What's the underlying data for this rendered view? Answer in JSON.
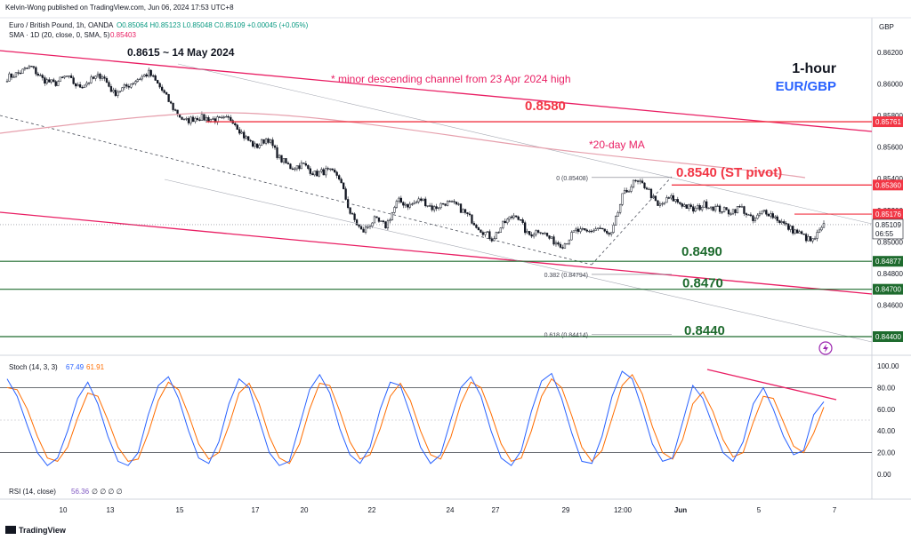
{
  "header": {
    "publisher": "Kelvin-Wong published on TradingView.com, Jun 06, 2024 17:53 UTC+8",
    "symbol": "Euro / British Pound, 1h, OANDA",
    "ohlc": "O0.85064 H0.85123 L0.85048 C0.85109 +0.00045 (+0.05%)",
    "sma": "SMA · 1D (20, close, 0, SMA, 5)",
    "sma_value": "0.85403"
  },
  "brand": {
    "label": "TradingView"
  },
  "colors": {
    "candle": "#131722",
    "resistance": "#f23645",
    "support": "#1e6b2e",
    "channel": "#e91e63",
    "ma": "#e6a0ad",
    "stoch_k": "#2962ff",
    "stoch_d": "#ff6d00",
    "title_blue": "#2962ff"
  },
  "chart_data": [
    {
      "type": "candlestick",
      "title": "1-hour",
      "subtitle": "EUR/GBP",
      "currency": "GBP",
      "ylim": [
        0.843,
        0.8625
      ],
      "y_ticks": [
        "0.86200",
        "0.86000",
        "0.85800",
        "0.85600",
        "0.85400",
        "0.85200",
        "0.85000",
        "0.84800",
        "0.84600",
        "0.84400"
      ],
      "x_ticks": [
        "10",
        "13",
        "15",
        "17",
        "20",
        "22",
        "24",
        "27",
        "29",
        "12:00",
        "Jun",
        "5",
        "7"
      ],
      "close_path": [
        0.8604,
        0.8607,
        0.8611,
        0.8603,
        0.86,
        0.8605,
        0.8598,
        0.8602,
        0.8606,
        0.8594,
        0.8598,
        0.8603,
        0.8607,
        0.8597,
        0.8585,
        0.8576,
        0.8579,
        0.8578,
        0.8577,
        0.8578,
        0.8567,
        0.856,
        0.8566,
        0.8553,
        0.8547,
        0.8549,
        0.8543,
        0.8545,
        0.8542,
        0.8518,
        0.8506,
        0.8514,
        0.851,
        0.8526,
        0.8523,
        0.8527,
        0.8521,
        0.8525,
        0.8523,
        0.8516,
        0.8508,
        0.8502,
        0.8512,
        0.8518,
        0.8504,
        0.8508,
        0.8501,
        0.8498,
        0.8507,
        0.8506,
        0.8509,
        0.8503,
        0.8529,
        0.8538,
        0.8535,
        0.8522,
        0.8528,
        0.8524,
        0.852,
        0.8524,
        0.8521,
        0.8519,
        0.8522,
        0.8513,
        0.852,
        0.8515,
        0.8509,
        0.8505,
        0.85,
        0.851
      ],
      "price_tags": [
        {
          "value": 0.85761,
          "label": "0.85761",
          "kind": "resistance"
        },
        {
          "value": 0.8536,
          "label": "0.85360",
          "kind": "resistance"
        },
        {
          "value": 0.85176,
          "label": "0.85176",
          "kind": "resistance"
        },
        {
          "value": 0.85109,
          "label": "0.85109",
          "kind": "current",
          "time_left": "06:55"
        },
        {
          "value": 0.84877,
          "label": "0.84877",
          "kind": "support"
        },
        {
          "value": 0.847,
          "label": "0.84700",
          "kind": "support"
        },
        {
          "value": 0.844,
          "label": "0.84400",
          "kind": "support"
        }
      ],
      "levels": [
        {
          "value": 0.858,
          "label": "0.8580",
          "kind": "resistance"
        },
        {
          "value": 0.854,
          "label": "0.8540 (ST pivot)",
          "kind": "resistance"
        },
        {
          "value": 0.849,
          "label": "0.8490",
          "kind": "support"
        },
        {
          "value": 0.847,
          "label": "0.8470",
          "kind": "support"
        },
        {
          "value": 0.844,
          "label": "0.8440",
          "kind": "support"
        }
      ],
      "fib": [
        {
          "label": "0 (0.85408)",
          "value": 0.85408
        },
        {
          "label": "0.382 (0.84794)",
          "value": 0.84794
        },
        {
          "label": "0.618 (0.84414)",
          "value": 0.84414
        }
      ],
      "annotations": [
        {
          "text": "0.8615 ~ 14 May 2024"
        },
        {
          "text": "* minor descending channel from 23 Apr 2024 high"
        },
        {
          "text": "*20-day MA"
        }
      ]
    },
    {
      "type": "line",
      "title": "Stoch (14, 3, 3)",
      "k_value": "67.49",
      "d_value": "61.91",
      "ylim": [
        -10,
        105
      ],
      "y_ticks": [
        "100.00",
        "80.00",
        "60.00",
        "40.00",
        "20.00",
        "0.00"
      ],
      "band_lines": [
        80,
        20
      ],
      "mid_line": 50,
      "k_path": [
        88,
        72,
        45,
        20,
        8,
        15,
        40,
        70,
        85,
        65,
        35,
        12,
        8,
        20,
        55,
        82,
        90,
        70,
        40,
        15,
        10,
        30,
        65,
        88,
        80,
        50,
        20,
        8,
        12,
        45,
        78,
        92,
        75,
        42,
        18,
        10,
        25,
        60,
        85,
        82,
        55,
        25,
        10,
        18,
        50,
        80,
        90,
        72,
        40,
        15,
        8,
        22,
        58,
        86,
        93,
        70,
        38,
        12,
        10,
        35,
        72,
        95,
        88,
        60,
        28,
        12,
        15,
        48,
        82,
        70,
        45,
        20,
        12,
        30,
        65,
        80,
        60,
        35,
        18,
        22,
        55,
        67
      ],
      "d_path": [
        80,
        78,
        60,
        35,
        15,
        12,
        25,
        52,
        75,
        72,
        50,
        25,
        12,
        14,
        38,
        68,
        85,
        78,
        55,
        28,
        14,
        20,
        45,
        75,
        84,
        65,
        35,
        15,
        10,
        28,
        60,
        84,
        82,
        58,
        30,
        14,
        18,
        42,
        72,
        84,
        68,
        40,
        18,
        14,
        34,
        65,
        85,
        80,
        56,
        28,
        12,
        15,
        40,
        72,
        88,
        80,
        54,
        25,
        12,
        22,
        52,
        82,
        92,
        74,
        44,
        20,
        14,
        32,
        65,
        76,
        58,
        32,
        16,
        20,
        48,
        72,
        70,
        48,
        26,
        20,
        38,
        62
      ],
      "trendline": "descending"
    },
    {
      "type": "line",
      "title": "RSI (14, close)",
      "value": "56.36",
      "extra": "∅ ∅ ∅ ∅"
    }
  ]
}
